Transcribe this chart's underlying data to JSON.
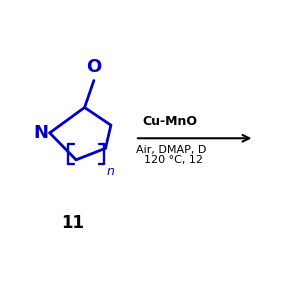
{
  "bg_color": "#ffffff",
  "compound_color": "#0000cc",
  "text_color": "#000000",
  "label_number": "11",
  "arrow_above": "Cu-MnO",
  "arrow_below_line1": "Air, DMAP, D",
  "arrow_below_line2": "120 °C, 12",
  "line_color": "#000000",
  "figsize": [
    2.86,
    2.86
  ],
  "dpi": 100
}
